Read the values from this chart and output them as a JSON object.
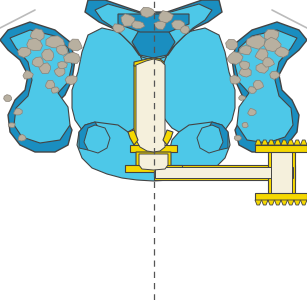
{
  "bg_color": "#ffffff",
  "dark_blue": "#1a8ec0",
  "light_blue": "#4dc8e8",
  "yellow": "#f5d800",
  "cream": "#f5f0dc",
  "gray_rock": "#b8b0a0",
  "gray_rock_dk": "#8a8278",
  "outline": "#444444",
  "figsize": [
    3.07,
    3.0
  ],
  "dpi": 100
}
